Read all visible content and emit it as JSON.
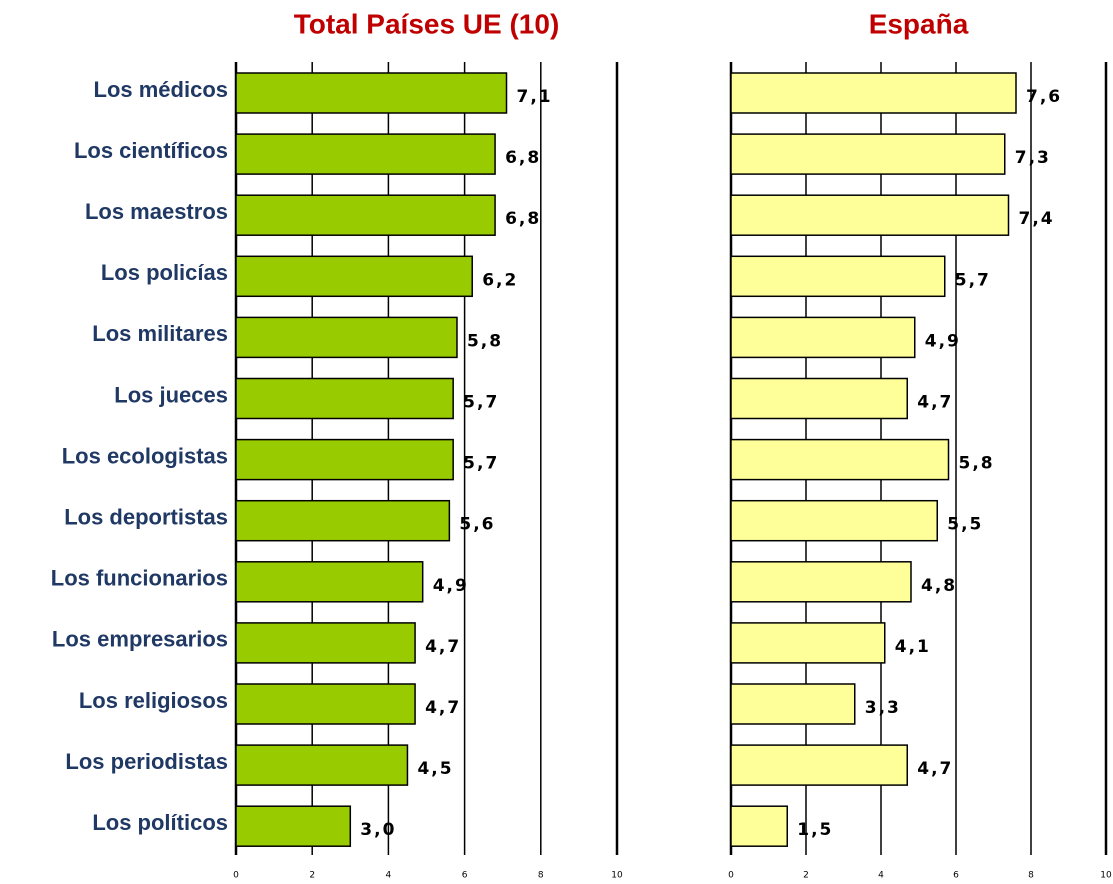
{
  "chart_data": [
    {
      "type": "bar",
      "title": "Total Países UE (10)",
      "categories": [
        "Los médicos",
        "Los científicos",
        "Los maestros",
        "Los policías",
        "Los militares",
        "Los jueces",
        "Los ecologistas",
        "Los deportistas",
        "Los funcionarios",
        "Los empresarios",
        "Los religiosos",
        "Los periodistas",
        "Los políticos"
      ],
      "values": [
        7.1,
        6.8,
        6.8,
        6.2,
        5.8,
        5.7,
        5.7,
        5.6,
        4.9,
        4.7,
        4.7,
        4.5,
        3.0
      ],
      "value_labels": [
        "7,1",
        "6,8",
        "6,8",
        "6,2",
        "5,8",
        "5,7",
        "5,7",
        "5,6",
        "4,9",
        "4,7",
        "4,7",
        "4,5",
        "3,0"
      ],
      "color": "#99cc00",
      "xlim": [
        0,
        10
      ],
      "xticks": [
        0,
        2,
        4,
        6,
        8,
        10
      ],
      "grid": true
    },
    {
      "type": "bar",
      "title": "España",
      "values": [
        7.6,
        7.3,
        7.4,
        5.7,
        4.9,
        4.7,
        5.8,
        5.5,
        4.8,
        4.1,
        3.3,
        4.7,
        1.5
      ],
      "value_labels": [
        "7,6",
        "7,3",
        "7,4",
        "5,7",
        "4,9",
        "4,7",
        "5,8",
        "5,5",
        "4,8",
        "4,1",
        "3,3",
        "4,7",
        "1,5"
      ],
      "color": "#ffff99",
      "xlim": [
        0,
        10
      ],
      "xticks": [
        0,
        2,
        4,
        6,
        8,
        10
      ],
      "grid": true
    }
  ]
}
